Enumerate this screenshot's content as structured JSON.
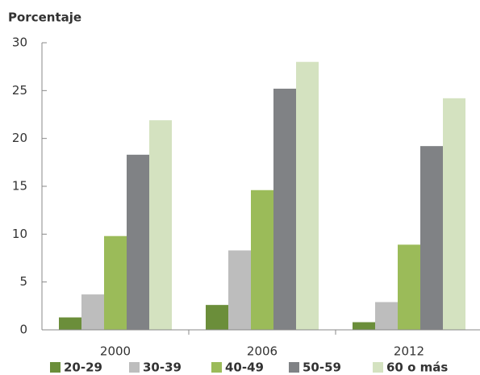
{
  "chart_data": {
    "type": "bar",
    "ylabel": "Porcentaje",
    "categories": [
      "2000",
      "2006",
      "2012"
    ],
    "series": [
      {
        "name": "20-29",
        "color": "#6b8e3a",
        "values": [
          1.3,
          2.6,
          0.8
        ]
      },
      {
        "name": "30-39",
        "color": "#bdbdbd",
        "values": [
          3.7,
          8.3,
          2.9
        ]
      },
      {
        "name": "40-49",
        "color": "#9bbb59",
        "values": [
          9.8,
          14.6,
          8.9
        ]
      },
      {
        "name": "50-59",
        "color": "#808285",
        "values": [
          18.3,
          25.2,
          19.2
        ]
      },
      {
        "name": "60 o más",
        "color": "#d4e2c0",
        "values": [
          21.9,
          28.0,
          24.2
        ]
      }
    ],
    "ylim": [
      0,
      30
    ],
    "yticks": [
      0,
      5,
      10,
      15,
      20,
      25,
      30
    ]
  }
}
